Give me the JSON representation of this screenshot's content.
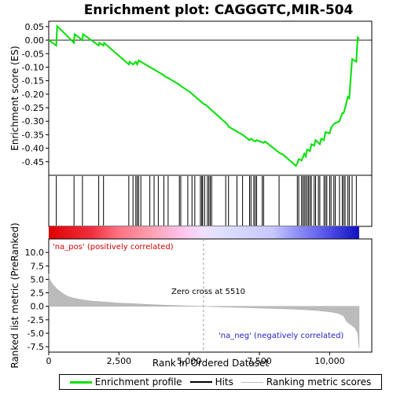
{
  "title": "Enrichment plot: CAGGGTC,MIR-504",
  "chart_data": {
    "type": "line",
    "title": "Enrichment plot: CAGGGTC,MIR-504",
    "xlabel": "Rank in Ordered Dataset",
    "ylabel_top": "Enrichment score (ES)",
    "ylabel_bottom": "Ranked list metric (PreRanked)",
    "xlim": [
      0,
      11500
    ],
    "ylim_es": [
      -0.5,
      0.07
    ],
    "ylim_metric": [
      -8.5,
      12.5
    ],
    "x_ticks": [
      0,
      2500,
      5000,
      7500,
      10000
    ],
    "x_tick_labels": [
      "0",
      "2,500",
      "5,000",
      "7,500",
      "10,000"
    ],
    "es_ticks": [
      0.05,
      0.0,
      -0.05,
      -0.1,
      -0.15,
      -0.2,
      -0.25,
      -0.3,
      -0.35,
      -0.4,
      -0.45
    ],
    "es_tick_labels": [
      "0.05",
      "0.00",
      "-0.05",
      "-0.10",
      "-0.15",
      "-0.20",
      "-0.25",
      "-0.30",
      "-0.35",
      "-0.40",
      "-0.45"
    ],
    "metric_ticks": [
      10.0,
      7.5,
      5.0,
      2.5,
      0.0,
      -2.5,
      -5.0,
      -7.5
    ],
    "metric_tick_labels": [
      "10.0",
      "7.5",
      "5.0",
      "2.5",
      "0.0",
      "-2.5",
      "-5.0",
      "-7.5"
    ],
    "enrichment_profile": {
      "name": "Enrichment profile",
      "color": "#00e000",
      "x": [
        0,
        270,
        300,
        900,
        920,
        1200,
        1220,
        1780,
        1800,
        1950,
        1970,
        2850,
        2880,
        3000,
        3100,
        3150,
        3200,
        3280,
        4100,
        4150,
        4250,
        4650,
        4700,
        5000,
        5450,
        5500,
        5600,
        5700,
        6350,
        6400,
        6900,
        7150,
        7200,
        7350,
        7400,
        7650,
        7700,
        8250,
        8300,
        8800,
        8850,
        8900,
        9000,
        9100,
        9150,
        9200,
        9300,
        9350,
        9450,
        9500,
        9650,
        9700,
        9800,
        9850,
        10000,
        10050,
        10150,
        10350,
        10450,
        10500,
        10650,
        10700,
        10750,
        10800,
        10950,
        11000,
        11050
      ],
      "y": [
        0.0,
        -0.02,
        0.052,
        -0.01,
        0.022,
        0.0,
        0.022,
        -0.02,
        -0.01,
        -0.02,
        -0.01,
        -0.09,
        -0.08,
        -0.09,
        -0.08,
        -0.09,
        -0.075,
        -0.08,
        -0.13,
        -0.135,
        -0.14,
        -0.165,
        -0.17,
        -0.19,
        -0.23,
        -0.235,
        -0.24,
        -0.25,
        -0.31,
        -0.32,
        -0.35,
        -0.37,
        -0.365,
        -0.375,
        -0.37,
        -0.38,
        -0.375,
        -0.42,
        -0.42,
        -0.465,
        -0.455,
        -0.44,
        -0.445,
        -0.42,
        -0.43,
        -0.405,
        -0.41,
        -0.385,
        -0.39,
        -0.37,
        -0.385,
        -0.365,
        -0.37,
        -0.34,
        -0.345,
        -0.325,
        -0.31,
        -0.3,
        -0.27,
        -0.27,
        -0.21,
        -0.215,
        -0.14,
        -0.07,
        -0.08,
        0.01,
        0.005
      ]
    },
    "hits": [
      270,
      900,
      1200,
      1780,
      1950,
      2850,
      3000,
      3100,
      3150,
      3200,
      3280,
      3600,
      3750,
      3900,
      4100,
      4250,
      4650,
      4700,
      4950,
      5100,
      5200,
      5400,
      5450,
      5480,
      5550,
      5650,
      5700,
      5750,
      5800,
      6300,
      6400,
      6700,
      6900,
      7150,
      7200,
      7300,
      7350,
      7400,
      7600,
      7650,
      8200,
      8850,
      8900,
      9000,
      9050,
      9100,
      9150,
      9200,
      9250,
      9300,
      9350,
      9450,
      9500,
      9600,
      9650,
      9800,
      9850,
      9900,
      10000,
      10050,
      10150,
      10200,
      10350,
      10450,
      10500,
      10550,
      10650,
      10700,
      10800,
      10950
    ],
    "ranking_metric": {
      "name": "Ranking metric scores",
      "color": "#bbbbbb",
      "x": [
        0,
        50,
        150,
        300,
        500,
        700,
        900,
        1200,
        1500,
        2000,
        2500,
        3000,
        3500,
        4000,
        4500,
        5000,
        5510,
        6000,
        7000,
        8000,
        8500,
        9000,
        9500,
        10000,
        10300,
        10500,
        10600,
        10700,
        10900,
        11000,
        11050
      ],
      "y": [
        6.0,
        4.8,
        4.0,
        3.2,
        2.4,
        1.8,
        1.5,
        1.2,
        1.0,
        0.8,
        0.6,
        0.5,
        0.35,
        0.25,
        0.15,
        0.08,
        0.0,
        -0.1,
        -0.25,
        -0.4,
        -0.5,
        -0.6,
        -0.75,
        -1.0,
        -1.3,
        -1.8,
        -2.8,
        -3.2,
        -4.0,
        -5.0,
        -7.8
      ]
    },
    "zero_cross": 5510,
    "zero_cross_label": "Zero cross at 5510",
    "pos_label": "'na_pos' (positively correlated)",
    "neg_label": "'na_neg' (negatively correlated)",
    "pos_color": "#e00000",
    "neg_color": "#2020e0",
    "legend": [
      {
        "key": "es",
        "label": "Enrichment profile"
      },
      {
        "key": "hits",
        "label": "Hits"
      },
      {
        "key": "rank",
        "label": "Ranking metric scores"
      }
    ]
  }
}
